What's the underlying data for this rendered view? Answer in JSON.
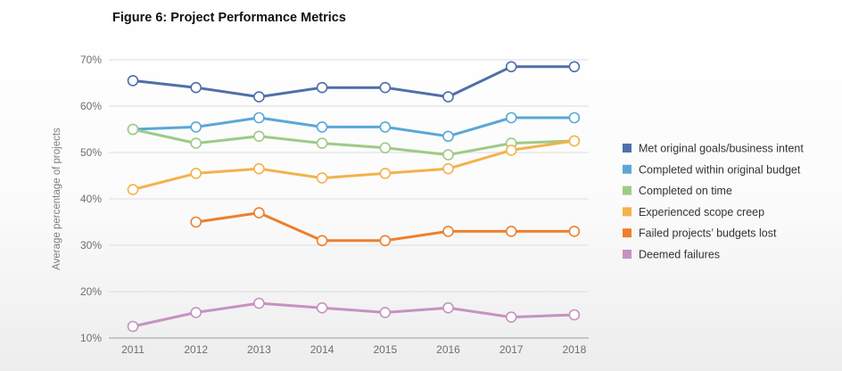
{
  "chart_data": {
    "type": "line",
    "title": "Figure 6: Project Performance Metrics",
    "xlabel": "",
    "ylabel": "Average percentage of projects",
    "x": [
      "2011",
      "2012",
      "2013",
      "2014",
      "2015",
      "2016",
      "2017",
      "2018"
    ],
    "ylim": [
      10,
      70
    ],
    "yticks": [
      10,
      20,
      30,
      40,
      50,
      60,
      70
    ],
    "ytick_labels": [
      "10%",
      "20%",
      "30%",
      "40%",
      "50%",
      "60%",
      "70%"
    ],
    "grid": true,
    "legend_position": "right",
    "series": [
      {
        "name": "Met original goals/business intent",
        "color": "#4f6fa9",
        "values": [
          65.5,
          64,
          62,
          64,
          64,
          62,
          68.5,
          68.5
        ]
      },
      {
        "name": "Completed within original budget",
        "color": "#5aa7d6",
        "values": [
          55,
          55.5,
          57.5,
          55.5,
          55.5,
          53.5,
          57.5,
          57.5
        ]
      },
      {
        "name": "Completed on time",
        "color": "#9dcb86",
        "values": [
          55,
          52,
          53.5,
          52,
          51,
          49.5,
          52,
          52.5
        ]
      },
      {
        "name": "Experienced scope creep",
        "color": "#f3b24b",
        "values": [
          42,
          45.5,
          46.5,
          44.5,
          45.5,
          46.5,
          50.5,
          52.5
        ]
      },
      {
        "name": "Failed projects’ budgets lost",
        "color": "#ee7f2c",
        "values": [
          null,
          35,
          37,
          31,
          31,
          33,
          33,
          33
        ]
      },
      {
        "name": "Deemed failures",
        "color": "#c692c1",
        "values": [
          12.5,
          15.5,
          17.5,
          16.5,
          15.5,
          16.5,
          14.5,
          15
        ]
      }
    ]
  }
}
